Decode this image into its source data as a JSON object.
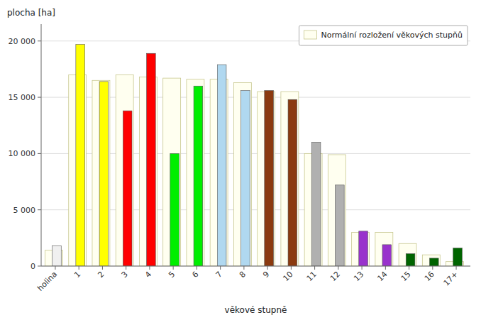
{
  "chart_data": {
    "type": "bar",
    "xlabel": "věkové stupně",
    "ylabel": "plocha [ha]",
    "categories": [
      "holina",
      "1",
      "2",
      "3",
      "4",
      "5",
      "6",
      "7",
      "8",
      "9",
      "10",
      "11",
      "12",
      "13",
      "14",
      "15",
      "16",
      "17+"
    ],
    "series": [
      {
        "name": "Normální rozložení věkových stupňů",
        "color": "#fffff0",
        "values": [
          1400,
          17000,
          16500,
          17000,
          16800,
          16700,
          16600,
          16600,
          16300,
          15500,
          15500,
          10000,
          9900,
          3000,
          3000,
          2000,
          1000,
          400
        ]
      },
      {
        "colors": [
          "#f0f0f0",
          "#ffff00",
          "#ffff00",
          "#ff0000",
          "#ff0000",
          "#00ee00",
          "#00ee00",
          "#b0d8f0",
          "#b0d8f0",
          "#8b3a0f",
          "#8b3a0f",
          "#b0b0b0",
          "#b0b0b0",
          "#9933cc",
          "#9933cc",
          "#006400",
          "#006400",
          "#006400"
        ],
        "values": [
          1800,
          19700,
          16400,
          13800,
          18900,
          10000,
          16000,
          17900,
          15600,
          15600,
          14800,
          11000,
          7200,
          3100,
          1900,
          1100,
          700,
          1600
        ]
      }
    ],
    "ylim": [
      0,
      21500
    ],
    "yticks": [
      0,
      {
        "value": 5000,
        "label": "5 000"
      },
      {
        "value": 10000,
        "label": "10 000"
      },
      {
        "value": 15000,
        "label": "15 000"
      },
      {
        "value": 20000,
        "label": "20 000"
      }
    ],
    "grid": true,
    "legend": "upper right"
  }
}
